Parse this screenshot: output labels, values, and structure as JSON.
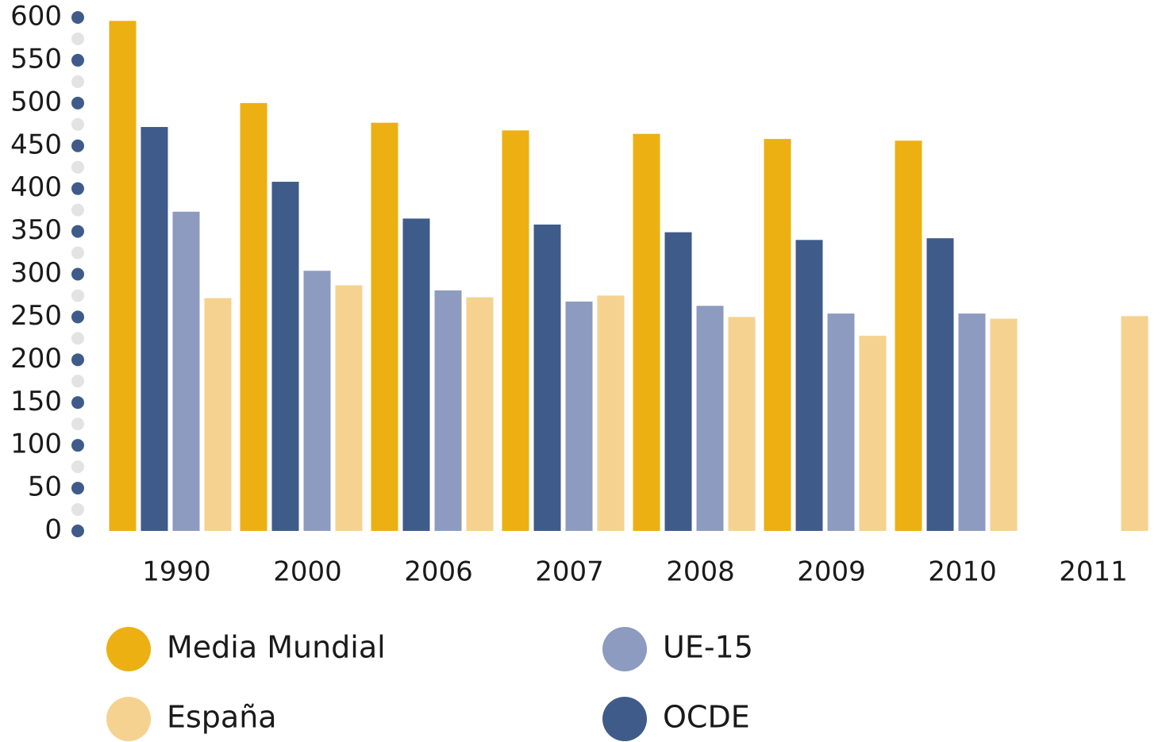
{
  "chart_data": {
    "type": "bar",
    "categories": [
      "1990",
      "2000",
      "2006",
      "2007",
      "2008",
      "2009",
      "2010",
      "2011"
    ],
    "series": [
      {
        "name": "Media Mundial",
        "color": "#ecb012",
        "values": [
          596,
          500,
          477,
          468,
          464,
          458,
          456,
          null
        ]
      },
      {
        "name": "OCDE",
        "color": "#3f5b8a",
        "values": [
          472,
          408,
          365,
          358,
          349,
          340,
          342,
          null
        ]
      },
      {
        "name": "UE-15",
        "color": "#8c9bbf",
        "values": [
          373,
          304,
          281,
          268,
          263,
          254,
          254,
          null
        ]
      },
      {
        "name": "España",
        "color": "#f5d28f",
        "values": [
          272,
          287,
          273,
          275,
          250,
          228,
          248,
          251
        ]
      }
    ],
    "ylim": [
      0,
      600
    ],
    "yticks": [
      0,
      50,
      100,
      150,
      200,
      250,
      300,
      350,
      400,
      450,
      500,
      550,
      600
    ]
  }
}
